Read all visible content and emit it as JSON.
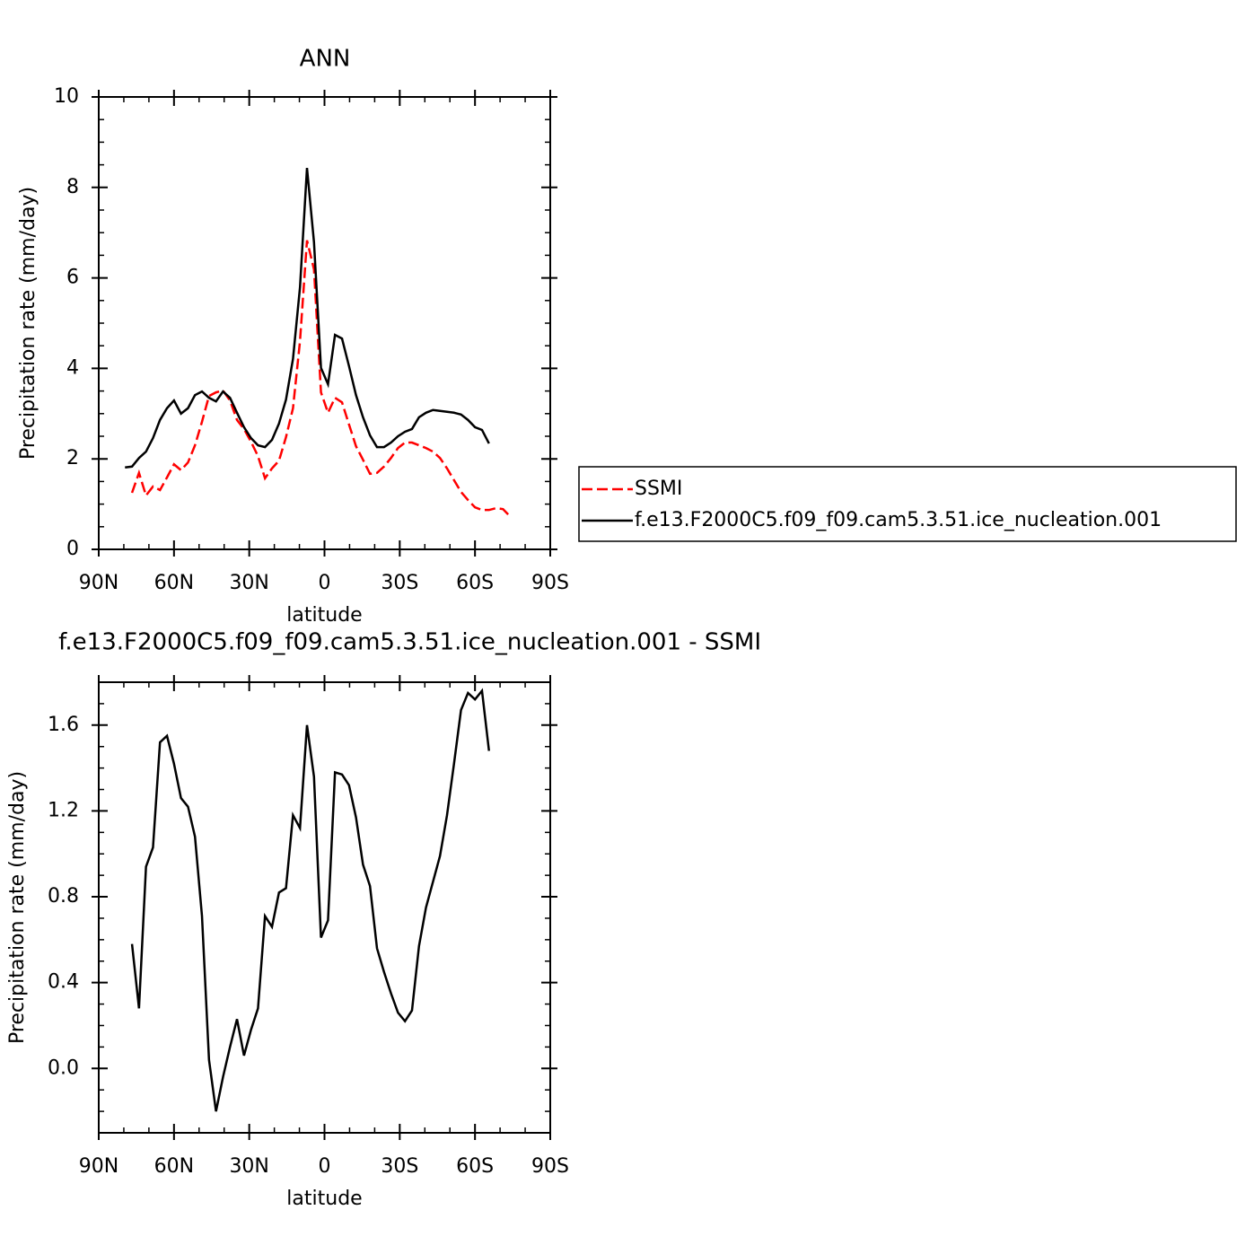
{
  "chart_data": [
    {
      "type": "line",
      "title": "ANN",
      "xlabel": "latitude",
      "ylabel": "Precipitation rate (mm/day)",
      "x": [
        79.53,
        76.74,
        73.95,
        71.16,
        68.37,
        65.58,
        62.79,
        60.0,
        57.21,
        54.42,
        51.63,
        48.84,
        46.04,
        43.25,
        40.46,
        37.67,
        34.88,
        32.09,
        29.3,
        26.51,
        23.72,
        20.93,
        18.14,
        15.35,
        12.56,
        9.77,
        6.98,
        4.19,
        1.4,
        -1.4,
        -4.19,
        -6.98,
        -9.77,
        -12.56,
        -15.35,
        -18.14,
        -20.93,
        -23.72,
        -26.51,
        -29.3,
        -32.09,
        -34.88,
        -37.67,
        -40.46,
        -43.25,
        -46.04,
        -48.84,
        -51.63,
        -54.42,
        -57.21,
        -60.0,
        -62.79,
        -65.58,
        -68.37,
        -71.16,
        -73.95
      ],
      "xlim": [
        90,
        -90
      ],
      "xticks": [
        {
          "value": 90,
          "label": "90N"
        },
        {
          "value": 60,
          "label": "60N"
        },
        {
          "value": 30,
          "label": "30N"
        },
        0,
        {
          "value": -30,
          "label": "30S"
        },
        {
          "value": -60,
          "label": "60S"
        },
        {
          "value": -90,
          "label": "90S"
        }
      ],
      "ylim": [
        0,
        10
      ],
      "yticks": [
        0,
        2,
        4,
        6,
        8,
        10
      ],
      "legend": "right",
      "series": [
        {
          "name": "SSMI",
          "color": "#ff0000",
          "dashed": true,
          "values": [
            null,
            1.25,
            1.69,
            1.19,
            1.39,
            1.31,
            1.59,
            1.88,
            1.75,
            1.92,
            2.3,
            2.82,
            3.39,
            3.47,
            3.51,
            3.29,
            2.86,
            2.66,
            2.38,
            2.06,
            1.57,
            1.79,
            1.96,
            2.48,
            3.12,
            4.6,
            6.83,
            6.19,
            3.47,
            3.02,
            3.35,
            3.25,
            2.76,
            2.28,
            1.98,
            1.67,
            1.69,
            1.83,
            2.02,
            2.24,
            2.36,
            2.36,
            2.3,
            2.24,
            2.16,
            2.02,
            1.79,
            1.53,
            1.27,
            1.09,
            0.93,
            0.87,
            0.87,
            0.91,
            0.89,
            0.73
          ]
        },
        {
          "name": "f.e13.F2000C5.f09_f09.cam5.3.51.ice_nucleation.001",
          "color": "#000000",
          "dashed": false,
          "values": [
            1.81,
            1.83,
            2.02,
            2.16,
            2.46,
            2.86,
            3.12,
            3.29,
            3.0,
            3.12,
            3.41,
            3.49,
            3.35,
            3.27,
            3.49,
            3.35,
            3.02,
            2.7,
            2.46,
            2.3,
            2.26,
            2.42,
            2.78,
            3.31,
            4.21,
            5.79,
            8.43,
            6.79,
            4.01,
            3.65,
            4.74,
            4.66,
            4.05,
            3.41,
            2.92,
            2.52,
            2.26,
            2.26,
            2.36,
            2.5,
            2.6,
            2.66,
            2.92,
            3.02,
            3.08,
            3.06,
            3.04,
            3.02,
            2.98,
            2.86,
            2.7,
            2.64,
            2.34,
            null,
            null,
            null
          ]
        }
      ]
    },
    {
      "type": "line",
      "title": "f.e13.F2000C5.f09_f09.cam5.3.51.ice_nucleation.001 - SSMI",
      "xlabel": "latitude",
      "ylabel": "Precipitation rate (mm/day)",
      "x": [
        79.53,
        76.74,
        73.95,
        71.16,
        68.37,
        65.58,
        62.79,
        60.0,
        57.21,
        54.42,
        51.63,
        48.84,
        46.04,
        43.25,
        40.46,
        37.67,
        34.88,
        32.09,
        29.3,
        26.51,
        23.72,
        20.93,
        18.14,
        15.35,
        12.56,
        9.77,
        6.98,
        4.19,
        1.4,
        -1.4,
        -4.19,
        -6.98,
        -9.77,
        -12.56,
        -15.35,
        -18.14,
        -20.93,
        -23.72,
        -26.51,
        -29.3,
        -32.09,
        -34.88,
        -37.67,
        -40.46,
        -43.25,
        -46.04,
        -48.84,
        -51.63,
        -54.42,
        -57.21,
        -60.0,
        -62.79,
        -65.58,
        -68.37,
        -71.16,
        -73.95
      ],
      "xlim": [
        90,
        -90
      ],
      "xticks": [
        {
          "value": 90,
          "label": "90N"
        },
        {
          "value": 60,
          "label": "60N"
        },
        {
          "value": 30,
          "label": "30N"
        },
        0,
        {
          "value": -30,
          "label": "30S"
        },
        {
          "value": -60,
          "label": "60S"
        },
        {
          "value": -90,
          "label": "90S"
        }
      ],
      "ylim": [
        -0.3,
        1.8
      ],
      "yticks": [
        {
          "value": 0,
          "label": "0.0"
        },
        0.4,
        0.8,
        1.2,
        1.6
      ],
      "series": [
        {
          "color": "#000000",
          "dashed": false,
          "values": [
            null,
            0.58,
            0.28,
            0.94,
            1.03,
            1.52,
            1.55,
            1.42,
            1.26,
            1.22,
            1.08,
            0.71,
            0.04,
            -0.2,
            -0.04,
            0.1,
            0.23,
            0.06,
            0.18,
            0.28,
            0.71,
            0.66,
            0.82,
            0.84,
            1.18,
            1.12,
            1.6,
            1.36,
            0.61,
            0.69,
            1.38,
            1.37,
            1.32,
            1.17,
            0.95,
            0.85,
            0.56,
            0.45,
            0.35,
            0.26,
            0.22,
            0.27,
            0.57,
            0.75,
            0.87,
            0.99,
            1.18,
            1.42,
            1.67,
            1.75,
            1.72,
            1.76,
            1.48,
            null,
            null,
            null
          ]
        }
      ]
    }
  ]
}
